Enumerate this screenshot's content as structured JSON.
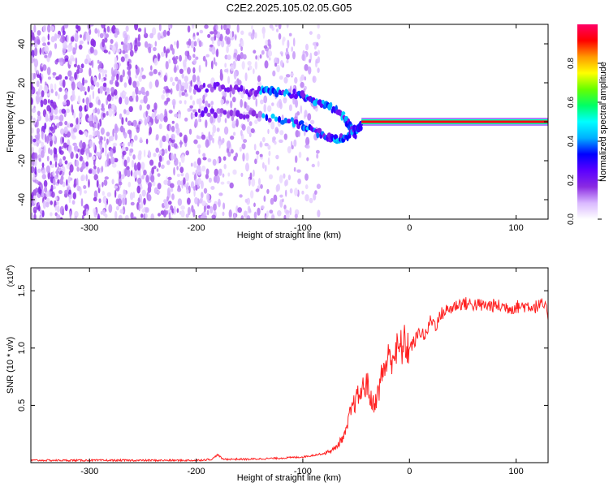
{
  "title": "C2E2.2025.105.02.05.G05",
  "chart_data": [
    {
      "type": "heatmap",
      "xlabel": "Height of straight line (km)",
      "ylabel": "Frequency (Hz)",
      "xlim": [
        -355,
        130
      ],
      "ylim": [
        -50,
        50
      ],
      "xticks": [
        -300,
        -200,
        -100,
        0,
        100
      ],
      "yticks": [
        -40,
        -20,
        0,
        20,
        40
      ],
      "colorbar": {
        "label": "Normalized spectral amplitude",
        "range": [
          0,
          1
        ],
        "ticks": [
          "0.0",
          "0.2",
          "0.4",
          "0.6",
          "0.8"
        ],
        "colors": [
          "#ffffff",
          "#d9b8ff",
          "#8a2be2",
          "#5b00ff",
          "#0000ff",
          "#00b0ff",
          "#00ffff",
          "#00ff66",
          "#66ff00",
          "#ffff00",
          "#ff9900",
          "#ff0000",
          "#ff0066"
        ]
      },
      "features": {
        "noise_region": {
          "x_range": [
            -355,
            -85
          ],
          "y_range": [
            -50,
            50
          ],
          "amplitude": "0.0-0.2"
        },
        "upper_branch": [
          [
            -200,
            17
          ],
          [
            -175,
            18
          ],
          [
            -150,
            15
          ],
          [
            -135,
            17
          ],
          [
            -120,
            15
          ],
          [
            -105,
            14
          ],
          [
            -90,
            11
          ],
          [
            -75,
            8
          ],
          [
            -62,
            3
          ],
          [
            -55,
            -3
          ],
          [
            -50,
            -8
          ]
        ],
        "lower_branch": [
          [
            -200,
            5
          ],
          [
            -170,
            4
          ],
          [
            -140,
            3
          ],
          [
            -110,
            0
          ],
          [
            -95,
            -3
          ],
          [
            -80,
            -7
          ],
          [
            -68,
            -9
          ],
          [
            -58,
            -7
          ],
          [
            -50,
            -4
          ],
          [
            -45,
            -2
          ]
        ],
        "carrier_line": {
          "x_range": [
            -45,
            130
          ],
          "frequency": 0,
          "amplitude": "0.9-1.0"
        }
      }
    },
    {
      "type": "line",
      "xlabel": "Height of straight line (km)",
      "ylabel": "SNR (10 * v/v)",
      "scale_note": {
        "base": "(x10",
        "exp": "4",
        "close": ")"
      },
      "xlim": [
        -355,
        130
      ],
      "ylim": [
        0,
        1.7
      ],
      "xticks": [
        -300,
        -200,
        -100,
        0,
        100
      ],
      "yticks": [
        "0.5",
        "1.0",
        "1.5"
      ],
      "color": "#ff2020",
      "series": [
        {
          "x": [
            -355,
            -300,
            -250,
            -200,
            -185,
            -180,
            -175,
            -150,
            -120,
            -100,
            -80,
            -70,
            -60,
            -55,
            -50,
            -45,
            -40,
            -35,
            -30,
            -25,
            -20,
            -15,
            -10,
            -5,
            0,
            5,
            10,
            15,
            20,
            25,
            30,
            35,
            40,
            45,
            50,
            60,
            70,
            80,
            90,
            95,
            100,
            110,
            120,
            125,
            130
          ],
          "y": [
            0.02,
            0.02,
            0.02,
            0.02,
            0.03,
            0.07,
            0.03,
            0.03,
            0.04,
            0.05,
            0.08,
            0.12,
            0.25,
            0.45,
            0.55,
            0.62,
            0.7,
            0.5,
            0.58,
            0.8,
            0.9,
            0.95,
            0.98,
            1.03,
            1.0,
            1.06,
            1.15,
            1.1,
            1.25,
            1.2,
            1.3,
            1.33,
            1.35,
            1.38,
            1.39,
            1.38,
            1.37,
            1.37,
            1.36,
            1.35,
            1.36,
            1.37,
            1.36,
            1.38,
            1.3
          ]
        }
      ]
    }
  ]
}
